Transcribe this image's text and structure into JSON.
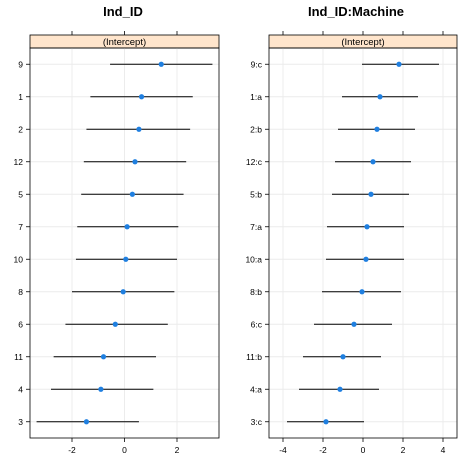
{
  "chart_data": [
    {
      "type": "scatter",
      "title": "Ind_ID",
      "strip_label": "(Intercept)",
      "xlim": [
        -3.6,
        3.6
      ],
      "x_ticks": [
        -2,
        0,
        2
      ],
      "x_tick_labels": [
        "-2",
        "0",
        "2"
      ],
      "grid": true,
      "point_color": "#1f7fe0",
      "categories": [
        "9",
        "1",
        "2",
        "12",
        "5",
        "7",
        "10",
        "8",
        "6",
        "11",
        "4",
        "3"
      ],
      "estimates": [
        1.4,
        0.65,
        0.55,
        0.4,
        0.3,
        0.1,
        0.05,
        -0.05,
        -0.35,
        -0.8,
        -0.9,
        -1.45
      ],
      "lower": [
        -0.55,
        -1.3,
        -1.45,
        -1.55,
        -1.65,
        -1.8,
        -1.85,
        -2.0,
        -2.25,
        -2.7,
        -2.8,
        -3.35
      ],
      "upper": [
        3.35,
        2.6,
        2.5,
        2.35,
        2.25,
        2.05,
        2.0,
        1.9,
        1.65,
        1.2,
        1.1,
        0.55
      ]
    },
    {
      "type": "scatter",
      "title": "Ind_ID:Machine",
      "strip_label": "(Intercept)",
      "xlim": [
        -4.7,
        4.7
      ],
      "x_ticks": [
        -4,
        -2,
        0,
        2,
        4
      ],
      "x_tick_labels": [
        "-4",
        "-2",
        "0",
        "2",
        "4"
      ],
      "grid": true,
      "point_color": "#1f7fe0",
      "categories": [
        "9:c",
        "1:a",
        "2:b",
        "12:c",
        "5:b",
        "7:a",
        "10:a",
        "8:b",
        "6:c",
        "11:b",
        "4:a",
        "3:c"
      ],
      "estimates": [
        1.8,
        0.85,
        0.7,
        0.5,
        0.4,
        0.2,
        0.15,
        -0.05,
        -0.45,
        -1.0,
        -1.15,
        -1.85
      ],
      "lower": [
        -0.05,
        -1.05,
        -1.25,
        -1.4,
        -1.55,
        -1.8,
        -1.85,
        -2.05,
        -2.45,
        -3.0,
        -3.2,
        -3.8
      ],
      "upper": [
        3.8,
        2.75,
        2.6,
        2.4,
        2.3,
        2.05,
        2.05,
        1.9,
        1.45,
        0.9,
        0.8,
        0.05
      ]
    }
  ]
}
